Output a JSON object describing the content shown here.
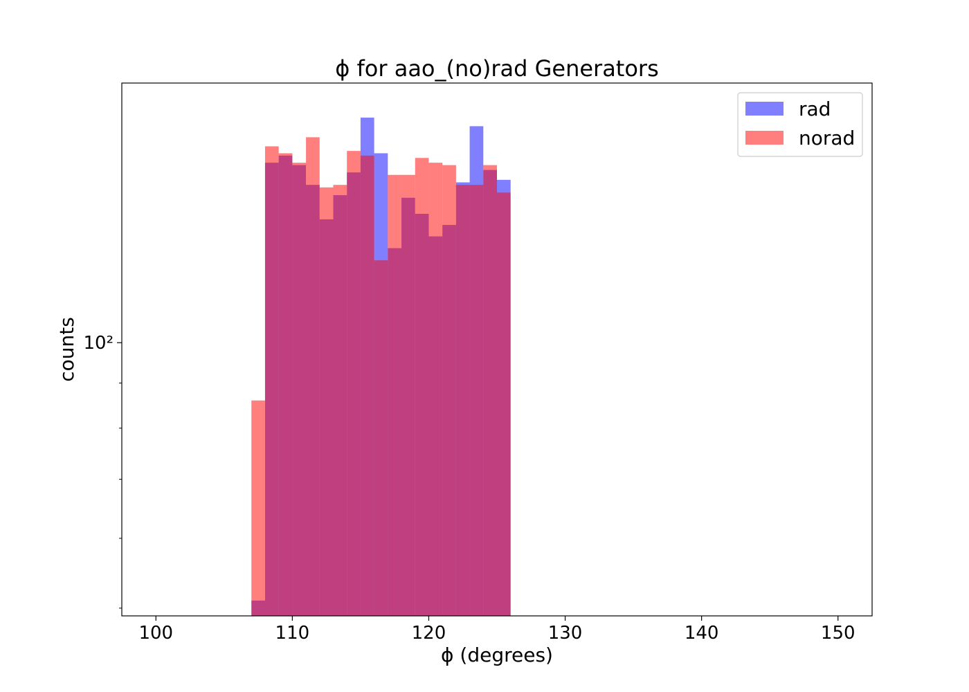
{
  "chart_data": {
    "type": "bar",
    "title": "ϕ for aao_(no)rad Generators",
    "xlabel": "ϕ (degrees)",
    "ylabel": "counts",
    "x_ticks": [
      100,
      110,
      120,
      130,
      140,
      150
    ],
    "x_tick_labels": [
      "100",
      "110",
      "120",
      "130",
      "140",
      "150"
    ],
    "y_ticks": [
      100
    ],
    "y_tick_labels": [
      "10²"
    ],
    "xlim": [
      97.5,
      152.5
    ],
    "ylim": [
      49,
      197
    ],
    "yscale": "log",
    "grid": false,
    "legend": {
      "placement": "top-right",
      "entries": [
        "rad",
        "norad"
      ]
    },
    "bin_edges": [
      107.0,
      108.0,
      109.0,
      110.0,
      111.0,
      112.0,
      113.0,
      114.0,
      115.0,
      116.0,
      117.0,
      118.0,
      119.0,
      120.0,
      121.0,
      122.0,
      123.0,
      124.0,
      125.0,
      126.0
    ],
    "series": [
      {
        "name": "rad",
        "color": "#0000ff",
        "alpha": 0.5,
        "values": [
          51,
          160,
          163,
          159,
          151,
          138,
          147,
          156,
          180,
          164,
          128,
          146,
          140,
          132,
          136,
          152,
          176,
          157,
          153,
          113
        ]
      },
      {
        "name": "norad",
        "color": "#ff0000",
        "alpha": 0.5,
        "values": [
          86,
          167,
          164,
          160,
          171,
          150,
          151,
          165,
          163,
          124,
          155,
          155,
          162,
          160,
          159,
          151,
          151,
          159,
          148,
          111
        ]
      }
    ]
  }
}
